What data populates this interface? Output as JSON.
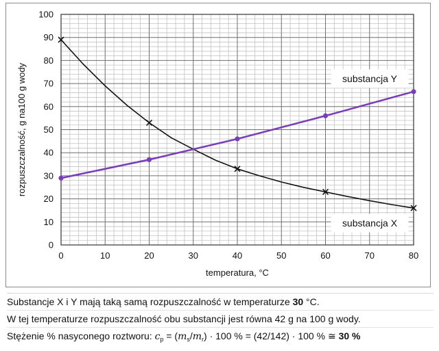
{
  "chart_data": {
    "type": "line",
    "xlabel": "temperatura, °C",
    "ylabel": "rozpuszczalność, g na100 g wody",
    "xlim": [
      0,
      80
    ],
    "ylim": [
      0,
      100
    ],
    "x_ticks": [
      "0",
      "10",
      "20",
      "30",
      "40",
      "50",
      "60",
      "70",
      "80"
    ],
    "y_ticks": [
      "0",
      "10",
      "20",
      "30",
      "40",
      "50",
      "60",
      "70",
      "80",
      "90",
      "100"
    ],
    "grid": "major and minor",
    "series": [
      {
        "name": "substancja X",
        "color": "#111111",
        "marker": "x",
        "points": [
          [
            0,
            89
          ],
          [
            20,
            53
          ],
          [
            40,
            33
          ],
          [
            60,
            23
          ],
          [
            80,
            16
          ]
        ],
        "curve": [
          [
            0,
            89
          ],
          [
            5,
            78.5
          ],
          [
            10,
            69
          ],
          [
            15,
            60.5
          ],
          [
            20,
            53
          ],
          [
            25,
            46.5
          ],
          [
            30,
            41.5
          ],
          [
            35,
            36.8
          ],
          [
            40,
            33
          ],
          [
            45,
            30
          ],
          [
            50,
            27.3
          ],
          [
            55,
            25
          ],
          [
            60,
            23
          ],
          [
            65,
            21
          ],
          [
            70,
            19.2
          ],
          [
            75,
            17.5
          ],
          [
            80,
            16
          ]
        ]
      },
      {
        "name": "substancja Y",
        "color": "#7a3fb8",
        "marker": "dot",
        "points": [
          [
            0,
            29
          ],
          [
            20,
            37
          ],
          [
            40,
            46
          ],
          [
            60,
            56
          ],
          [
            80,
            66.5
          ]
        ],
        "curve": [
          [
            0,
            29
          ],
          [
            20,
            37
          ],
          [
            40,
            46
          ],
          [
            60,
            56
          ],
          [
            80,
            66.5
          ]
        ]
      }
    ],
    "legend": {
      "y_label": "substancja Y",
      "x_label": "substancja X"
    }
  },
  "explanation": {
    "line1_prefix": "Substancje X i Y mają taką samą rozpuszczalność w temperaturze ",
    "line1_bold": "30",
    "line1_suffix": " °C.",
    "line2": "W tej temperaturze rozpuszczalność obu substancji jest równa 42 g na 100 g wody.",
    "line3_prefix": "Stężenie % nasyconego roztworu: ",
    "cp_symbol": "c",
    "cp_sub": "p",
    "line3_mid1": " = (",
    "ms_symbol": "m",
    "ms_sub": "s",
    "slash": "/",
    "mr_symbol": "m",
    "mr_sub": "r",
    "line3_mid2": ") · 100 % = (42/142) · 100 % ≅ ",
    "line3_bold": "30 %"
  }
}
